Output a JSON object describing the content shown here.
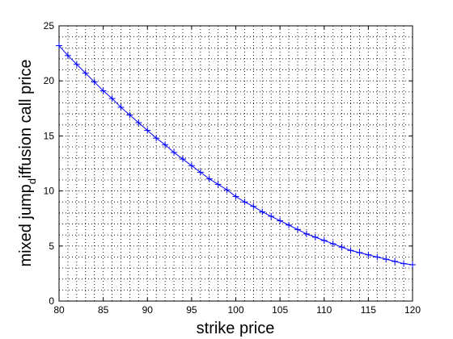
{
  "chart_data": {
    "type": "line",
    "title": "",
    "xlabel": "strike price",
    "ylabel": "mixed jump",
    "ylabel_sub": "d",
    "ylabel_rest": "iffusion call price",
    "xlim": [
      80,
      120
    ],
    "ylim": [
      0,
      25
    ],
    "xticks": [
      80,
      85,
      90,
      95,
      100,
      105,
      110,
      115,
      120
    ],
    "yticks": [
      0,
      5,
      10,
      15,
      20,
      25
    ],
    "xminor_step": 1,
    "yminor_step": 1,
    "grid": true,
    "minor_grid": true,
    "legend": "none",
    "series_color": "#0000ff",
    "axes_color": "#000000",
    "marker": "plus",
    "series": [
      {
        "x": [
          80,
          81,
          82,
          83,
          84,
          85,
          86,
          87,
          88,
          89,
          90,
          91,
          92,
          93,
          94,
          95,
          96,
          97,
          98,
          99,
          100,
          101,
          102,
          103,
          104,
          105,
          106,
          107,
          108,
          109,
          110,
          111,
          112,
          113,
          114,
          115,
          116,
          117,
          118,
          119,
          120
        ],
        "y": [
          23.2,
          22.3,
          21.5,
          20.7,
          19.9,
          19.1,
          18.4,
          17.6,
          16.9,
          16.2,
          15.5,
          14.8,
          14.2,
          13.5,
          12.9,
          12.3,
          11.7,
          11.1,
          10.6,
          10.1,
          9.5,
          9.0,
          8.6,
          8.1,
          7.7,
          7.3,
          6.9,
          6.5,
          6.1,
          5.8,
          5.5,
          5.2,
          4.9,
          4.6,
          4.4,
          4.2,
          4.0,
          3.8,
          3.6,
          3.4,
          3.3
        ]
      }
    ]
  }
}
